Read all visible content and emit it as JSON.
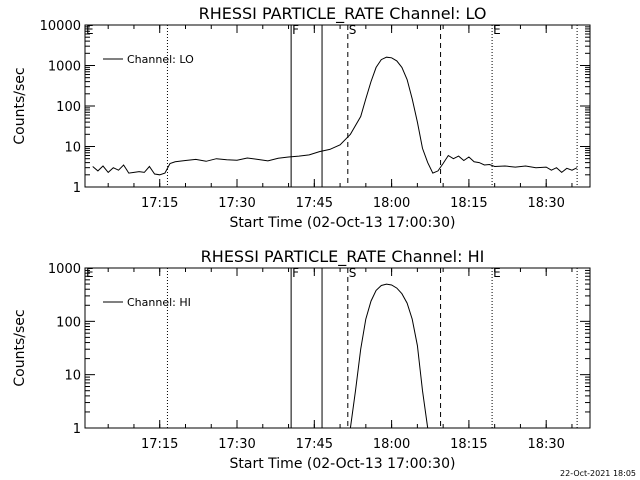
{
  "footer": "22-Oct-2021 18:05",
  "chart_data": [
    {
      "type": "line",
      "title": "RHESSI PARTICLE_RATE Channel: LO",
      "xlabel": "Start Time (02-Oct-13 17:00:30)",
      "ylabel": "Counts/sec",
      "y_scale": "log",
      "ylim": [
        1,
        10000
      ],
      "y_ticks": [
        "1",
        "10",
        "100",
        "1000",
        "10000"
      ],
      "y_tick_values": [
        1,
        10,
        100,
        1000,
        10000
      ],
      "xlim": [
        "17:00:30",
        "18:38:30"
      ],
      "x_ticks": [
        "17:15",
        "17:30",
        "17:45",
        "18:00",
        "18:15",
        "18:30"
      ],
      "legend": {
        "position": "top-left",
        "entries": [
          "Channel: LO"
        ]
      },
      "markers": [
        {
          "label": "E",
          "time": "17:00:30",
          "style": "dotted",
          "show_line": false
        },
        {
          "label": "",
          "time": "17:16:30",
          "style": "dotted",
          "show_line": true
        },
        {
          "label": "F",
          "time": "17:40:30",
          "style": "solid",
          "show_line": true
        },
        {
          "label": "",
          "time": "17:46:30",
          "style": "solid",
          "show_line": true
        },
        {
          "label": "S",
          "time": "17:51:30",
          "style": "dashed",
          "show_line": true
        },
        {
          "label": "",
          "time": "18:09:30",
          "style": "dashed",
          "show_line": true
        },
        {
          "label": "E",
          "time": "18:19:30",
          "style": "dotted",
          "show_line": true
        },
        {
          "label": "",
          "time": "18:36:00",
          "style": "dotted",
          "show_line": true
        }
      ],
      "series": [
        {
          "name": "Channel: LO",
          "x": [
            "17:02:00",
            "17:03:00",
            "17:04:00",
            "17:05:00",
            "17:06:00",
            "17:07:00",
            "17:08:00",
            "17:09:00",
            "17:10:00",
            "17:11:00",
            "17:12:00",
            "17:13:00",
            "17:14:00",
            "17:15:00",
            "17:16:00",
            "17:17:00",
            "17:18:00",
            "17:20:00",
            "17:22:00",
            "17:24:00",
            "17:26:00",
            "17:28:00",
            "17:30:00",
            "17:32:00",
            "17:34:00",
            "17:36:00",
            "17:38:00",
            "17:40:00",
            "17:42:00",
            "17:44:00",
            "17:46:00",
            "17:48:00",
            "17:50:00",
            "17:52:00",
            "17:54:00",
            "17:55:00",
            "17:56:00",
            "17:57:00",
            "17:58:00",
            "17:59:00",
            "18:00:00",
            "18:01:00",
            "18:02:00",
            "18:03:00",
            "18:04:00",
            "18:05:00",
            "18:06:00",
            "18:07:00",
            "18:08:00",
            "18:09:00",
            "18:10:00",
            "18:11:00",
            "18:12:00",
            "18:13:00",
            "18:14:00",
            "18:15:00",
            "18:16:00",
            "18:17:00",
            "18:18:00",
            "18:19:00",
            "18:20:00",
            "18:22:00",
            "18:24:00",
            "18:26:00",
            "18:28:00",
            "18:30:00",
            "18:31:00",
            "18:32:00",
            "18:33:00",
            "18:34:00",
            "18:35:00",
            "18:36:00"
          ],
          "y": [
            3.2,
            2.5,
            3.3,
            2.3,
            3.0,
            2.6,
            3.5,
            2.2,
            2.3,
            2.4,
            2.3,
            3.2,
            2.1,
            2.0,
            2.2,
            3.8,
            4.2,
            4.5,
            4.8,
            4.3,
            5.0,
            4.7,
            4.6,
            5.2,
            4.8,
            4.4,
            5.1,
            5.5,
            5.8,
            6.2,
            7.5,
            8.5,
            11,
            20,
            55,
            150,
            400,
            900,
            1400,
            1600,
            1550,
            1300,
            900,
            450,
            150,
            40,
            9,
            4,
            2.2,
            2.5,
            3.8,
            6.0,
            5.0,
            5.8,
            4.5,
            5.5,
            4.2,
            4.0,
            3.5,
            3.6,
            3.2,
            3.3,
            3.1,
            3.3,
            3.0,
            3.1,
            2.6,
            3.0,
            2.3,
            2.9,
            2.6,
            3.0
          ]
        }
      ]
    },
    {
      "type": "line",
      "title": "RHESSI PARTICLE_RATE Channel: HI",
      "xlabel": "Start Time (02-Oct-13 17:00:30)",
      "ylabel": "Counts/sec",
      "y_scale": "log",
      "ylim": [
        1,
        1000
      ],
      "y_ticks": [
        "1",
        "10",
        "100",
        "1000"
      ],
      "y_tick_values": [
        1,
        10,
        100,
        1000
      ],
      "xlim": [
        "17:00:30",
        "18:38:30"
      ],
      "x_ticks": [
        "17:15",
        "17:30",
        "17:45",
        "18:00",
        "18:15",
        "18:30"
      ],
      "legend": {
        "position": "top-left",
        "entries": [
          "Channel: HI"
        ]
      },
      "markers": [
        {
          "label": "E",
          "time": "17:00:30",
          "style": "dotted",
          "show_line": false
        },
        {
          "label": "",
          "time": "17:16:30",
          "style": "dotted",
          "show_line": true
        },
        {
          "label": "F",
          "time": "17:40:30",
          "style": "solid",
          "show_line": true
        },
        {
          "label": "",
          "time": "17:46:30",
          "style": "solid",
          "show_line": true
        },
        {
          "label": "S",
          "time": "17:51:30",
          "style": "dashed",
          "show_line": true
        },
        {
          "label": "",
          "time": "18:09:30",
          "style": "dashed",
          "show_line": true
        },
        {
          "label": "E",
          "time": "18:19:30",
          "style": "dotted",
          "show_line": true
        },
        {
          "label": "",
          "time": "18:36:00",
          "style": "dotted",
          "show_line": true
        }
      ],
      "series": [
        {
          "name": "Channel: HI",
          "x": [
            "17:52:00",
            "17:53:00",
            "17:54:00",
            "17:55:00",
            "17:56:00",
            "17:57:00",
            "17:58:00",
            "17:59:00",
            "18:00:00",
            "18:01:00",
            "18:02:00",
            "18:03:00",
            "18:04:00",
            "18:05:00",
            "18:06:00",
            "18:07:00"
          ],
          "y": [
            1,
            5,
            30,
            110,
            240,
            380,
            470,
            500,
            480,
            420,
            330,
            220,
            110,
            35,
            5,
            1
          ]
        }
      ]
    }
  ]
}
